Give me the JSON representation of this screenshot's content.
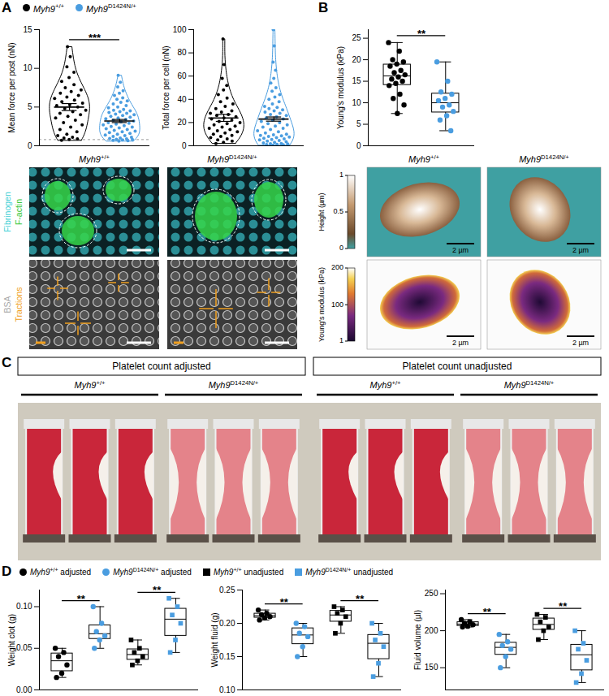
{
  "panel_labels": [
    "A",
    "B",
    "C",
    "D"
  ],
  "chart_data": [
    {
      "type": "violin",
      "ylabel": "Mean force per post (nN)",
      "ylim": [
        0,
        15
      ],
      "yticks": [
        0,
        5,
        10,
        15
      ],
      "reference_line": 0.8,
      "significance": [
        {
          "text": "***",
          "between": [
            0,
            1
          ]
        }
      ],
      "series": [
        {
          "name": "Myh9+/+",
          "color": "#000000",
          "marker": "circle",
          "mean": 5.0,
          "sem": 0.45,
          "values": [
            12.8,
            11.5,
            10.2,
            9.5,
            8.8,
            8.3,
            7.9,
            7.5,
            7.2,
            7.0,
            6.8,
            6.5,
            6.3,
            6.1,
            5.9,
            5.7,
            5.5,
            5.3,
            5.2,
            5.0,
            4.8,
            4.6,
            4.4,
            4.2,
            4.0,
            3.8,
            3.6,
            3.3,
            3.0,
            2.7,
            2.4,
            2.1,
            1.8,
            1.5,
            1.3,
            1.1,
            1.0,
            0.9,
            0.8,
            0.7
          ]
        },
        {
          "name": "Myh9D1424N/+",
          "color": "#4a9de0",
          "marker": "circle",
          "mean": 3.2,
          "sem": 0.2,
          "values": [
            9.1,
            8.2,
            7.6,
            7.1,
            6.8,
            6.5,
            6.2,
            6.0,
            5.8,
            5.6,
            5.4,
            5.2,
            5.0,
            4.9,
            4.7,
            4.6,
            4.5,
            4.4,
            4.3,
            4.2,
            4.1,
            4.0,
            3.9,
            3.8,
            3.7,
            3.6,
            3.5,
            3.4,
            3.3,
            3.2,
            3.1,
            3.0,
            2.9,
            2.8,
            2.7,
            2.6,
            2.5,
            2.4,
            2.3,
            2.2,
            2.1,
            2.0,
            1.9,
            1.8,
            1.7,
            1.6,
            1.5,
            1.4,
            1.3,
            1.2,
            1.1,
            1.0,
            0.95,
            0.9,
            0.85,
            0.8,
            0.75,
            0.7,
            0.65,
            0.6
          ]
        }
      ]
    },
    {
      "type": "violin",
      "ylabel": "Total force per cell (nN)",
      "ylim": [
        0,
        100
      ],
      "yticks": [
        0,
        20,
        40,
        60,
        80,
        100
      ],
      "series": [
        {
          "name": "Myh9+/+",
          "color": "#000000",
          "marker": "circle",
          "mean": 24,
          "sem": 3,
          "values": [
            92,
            70,
            58,
            52,
            48,
            44,
            41,
            38,
            36,
            34,
            32,
            30,
            29,
            28,
            27,
            26,
            25,
            24,
            23,
            22,
            21,
            20,
            19,
            18,
            17,
            16,
            15,
            14,
            13,
            12,
            11,
            10,
            9,
            8,
            7,
            6,
            5,
            4,
            3,
            2
          ]
        },
        {
          "name": "Myh9D1424N/+",
          "color": "#4a9de0",
          "marker": "circle",
          "mean": 23,
          "sem": 1.8,
          "values": [
            100,
            86,
            72,
            65,
            58,
            54,
            50,
            47,
            44,
            42,
            40,
            38,
            36,
            34,
            33,
            32,
            31,
            30,
            29,
            28,
            27,
            26,
            25,
            24,
            23,
            22,
            21,
            20,
            19,
            18,
            17,
            16,
            15,
            14,
            13,
            12,
            11,
            10,
            9.5,
            9,
            8.5,
            8,
            7.5,
            7,
            6.5,
            6,
            5.5,
            5,
            4.5,
            4,
            3.5,
            3,
            2.5,
            2,
            1.8,
            1.5,
            1.2,
            1,
            0.8,
            0.5
          ]
        }
      ]
    },
    {
      "type": "box",
      "ylabel": "Young's modulus (kPa)",
      "ylim": [
        0,
        27
      ],
      "yticks": [
        0,
        5,
        10,
        15,
        20,
        25
      ],
      "significance": [
        {
          "text": "**",
          "between": [
            0,
            1
          ]
        }
      ],
      "series": [
        {
          "name": "Myh9+/+",
          "color": "#000000",
          "marker": "circle",
          "values": [
            24,
            22,
            20,
            19.5,
            19,
            18.5,
            17.5,
            17,
            16.5,
            16,
            15.5,
            15,
            14.5,
            14,
            12,
            11,
            9.5,
            7.5
          ]
        },
        {
          "name": "Myh9D1424N/+",
          "color": "#4a9de0",
          "marker": "circle",
          "values": [
            19.5,
            15,
            12.5,
            12,
            11,
            10.5,
            9.5,
            9,
            8,
            7,
            6,
            3.5
          ]
        }
      ]
    },
    {
      "type": "box",
      "ylabel": "Weight clot (g)",
      "ylim": [
        0,
        0.12
      ],
      "yticks": [
        {
          "value": 0,
          "label": "0.00"
        },
        {
          "value": 0.05,
          "label": "0.05"
        },
        {
          "value": 0.1,
          "label": "0.10"
        }
      ],
      "significance": [
        {
          "text": "**",
          "between": [
            0,
            1
          ]
        },
        {
          "text": "**",
          "between": [
            2,
            3
          ]
        }
      ],
      "series": [
        {
          "name": "Myh9+/+ adjusted",
          "color": "#000000",
          "marker": "circle",
          "values": [
            0.05,
            0.045,
            0.04,
            0.03,
            0.02,
            0.015
          ]
        },
        {
          "name": "Myh9D1424N/+ adjusted",
          "color": "#4a9de0",
          "marker": "circle",
          "values": [
            0.1,
            0.08,
            0.07,
            0.065,
            0.06,
            0.05
          ]
        },
        {
          "name": "Myh9+/+ unadjusted",
          "color": "#000000",
          "marker": "square",
          "values": [
            0.06,
            0.05,
            0.045,
            0.04,
            0.035,
            0.03
          ]
        },
        {
          "name": "Myh9D1424N/+ unadjusted",
          "color": "#4a9de0",
          "marker": "square",
          "values": [
            0.11,
            0.1,
            0.09,
            0.08,
            0.06,
            0.045
          ]
        }
      ]
    },
    {
      "type": "box",
      "ylabel": "Weight fluid (g)",
      "ylim": [
        0.1,
        0.25
      ],
      "yticks": [
        {
          "value": 0.1,
          "label": "0.10"
        },
        {
          "value": 0.15,
          "label": "0.15"
        },
        {
          "value": 0.2,
          "label": "0.20"
        },
        {
          "value": 0.25,
          "label": "0.25"
        }
      ],
      "significance": [
        {
          "text": "**",
          "between": [
            0,
            1
          ]
        },
        {
          "text": "**",
          "between": [
            2,
            3
          ]
        }
      ],
      "series": [
        {
          "name": "Myh9+/+ adjusted",
          "color": "#000000",
          "marker": "circle",
          "values": [
            0.22,
            0.215,
            0.213,
            0.21,
            0.208,
            0.205
          ]
        },
        {
          "name": "Myh9D1424N/+ adjusted",
          "color": "#4a9de0",
          "marker": "circle",
          "values": [
            0.2,
            0.195,
            0.185,
            0.18,
            0.165,
            0.15
          ]
        },
        {
          "name": "Myh9+/+ unadjusted",
          "color": "#000000",
          "marker": "square",
          "values": [
            0.225,
            0.22,
            0.215,
            0.21,
            0.2,
            0.185
          ]
        },
        {
          "name": "Myh9D1424N/+ unadjusted",
          "color": "#4a9de0",
          "marker": "square",
          "values": [
            0.2,
            0.185,
            0.175,
            0.165,
            0.14,
            0.12
          ]
        }
      ]
    },
    {
      "type": "box",
      "ylabel": "Fluid volume (µl)",
      "ylim": [
        120,
        255
      ],
      "yticks": [
        150,
        200,
        250
      ],
      "significance": [
        {
          "text": "**",
          "between": [
            0,
            1
          ]
        },
        {
          "text": "**",
          "between": [
            2,
            3
          ]
        }
      ],
      "series": [
        {
          "name": "Myh9+/+ adjusted",
          "color": "#000000",
          "marker": "circle",
          "values": [
            215,
            212,
            210,
            208,
            206,
            205
          ]
        },
        {
          "name": "Myh9D1424N/+ adjusted",
          "color": "#4a9de0",
          "marker": "circle",
          "values": [
            195,
            185,
            180,
            175,
            165,
            150
          ]
        },
        {
          "name": "Myh9+/+ unadjusted",
          "color": "#000000",
          "marker": "square",
          "values": [
            222,
            218,
            212,
            205,
            200,
            188
          ]
        },
        {
          "name": "Myh9D1424N/+ unadjusted",
          "color": "#4a9de0",
          "marker": "square",
          "values": [
            200,
            183,
            175,
            160,
            142,
            130
          ]
        }
      ]
    }
  ],
  "images": {
    "A": {
      "columns": [
        "Myh9+/+",
        "Myh9D1424N/+"
      ],
      "rows": [
        {
          "labels": [
            {
              "text": "Fibrinogen",
              "color": "#3fd0d6"
            },
            {
              "text": "F-actin",
              "color": "#37c837"
            }
          ]
        },
        {
          "labels": [
            {
              "text": "BSA",
              "color": "#a8a8a8"
            },
            {
              "text": "Tractions",
              "color": "#f0a020"
            }
          ]
        }
      ]
    },
    "B": {
      "columns": [
        "Myh9+/+",
        "Myh9D1424N/+"
      ],
      "rows": [
        {
          "colorbar": {
            "label": "Height (µm)",
            "range": [
              0,
              1
            ],
            "ticks": [
              0,
              0.5,
              1
            ]
          }
        },
        {
          "colorbar": {
            "label": "Young's modulus (kPa)",
            "range": [
              1,
              200
            ],
            "ticks": [
              1,
              100,
              200
            ]
          }
        }
      ],
      "scale_bar": "2 µm"
    }
  },
  "photo": {
    "headers": [
      {
        "text": "Platelet count adjusted",
        "groups": [
          "Myh9+/+",
          "Myh9D1424N/+"
        ]
      },
      {
        "text": "Platelet count unadjusted",
        "groups": [
          "Myh9+/+",
          "Myh9D1424N/+"
        ]
      }
    ]
  }
}
